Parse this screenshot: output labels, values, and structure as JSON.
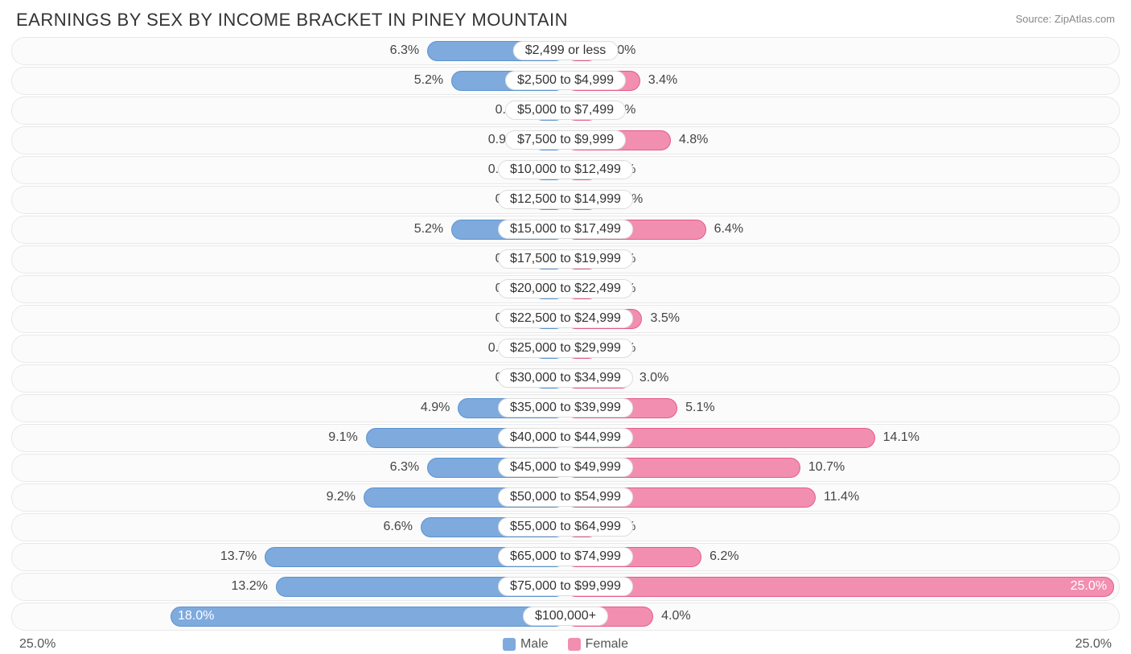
{
  "title": "EARNINGS BY SEX BY INCOME BRACKET IN PINEY MOUNTAIN",
  "source": "Source: ZipAtlas.com",
  "chart": {
    "type": "diverging-bar",
    "axis_max": 25.0,
    "axis_left_label": "25.0%",
    "axis_right_label": "25.0%",
    "min_bar_pct": 1.5,
    "row_bg": "#fbfbfb",
    "row_border": "#e8e8e8",
    "male_color": "#7eaade",
    "male_border": "#5a93d0",
    "female_color": "#f28fb1",
    "female_border": "#e55a8a",
    "label_fontsize": 16,
    "title_fontsize": 22,
    "legend": [
      {
        "label": "Male",
        "color": "#7eaade"
      },
      {
        "label": "Female",
        "color": "#f28fb1"
      }
    ],
    "rows": [
      {
        "bracket": "$2,499 or less",
        "male": 6.3,
        "male_label": "6.3%",
        "female": 0.0,
        "female_label": "0.0%"
      },
      {
        "bracket": "$2,500 to $4,999",
        "male": 5.2,
        "male_label": "5.2%",
        "female": 3.4,
        "female_label": "3.4%"
      },
      {
        "bracket": "$5,000 to $7,499",
        "male": 0.0,
        "male_label": "0.0%",
        "female": 0.0,
        "female_label": "0.0%"
      },
      {
        "bracket": "$7,500 to $9,999",
        "male": 0.92,
        "male_label": "0.92%",
        "female": 4.8,
        "female_label": "4.8%"
      },
      {
        "bracket": "$10,000 to $12,499",
        "male": 0.46,
        "male_label": "0.46%",
        "female": 1.4,
        "female_label": "1.4%"
      },
      {
        "bracket": "$12,500 to $14,999",
        "male": 0.0,
        "male_label": "0.0%",
        "female": 0.96,
        "female_label": "0.96%"
      },
      {
        "bracket": "$15,000 to $17,499",
        "male": 5.2,
        "male_label": "5.2%",
        "female": 6.4,
        "female_label": "6.4%"
      },
      {
        "bracket": "$17,500 to $19,999",
        "male": 0.0,
        "male_label": "0.0%",
        "female": 0.0,
        "female_label": "0.0%"
      },
      {
        "bracket": "$20,000 to $22,499",
        "male": 0.0,
        "male_label": "0.0%",
        "female": 0.0,
        "female_label": "0.0%"
      },
      {
        "bracket": "$22,500 to $24,999",
        "male": 0.0,
        "male_label": "0.0%",
        "female": 3.5,
        "female_label": "3.5%"
      },
      {
        "bracket": "$25,000 to $29,999",
        "male": 0.77,
        "male_label": "0.77%",
        "female": 0.0,
        "female_label": "0.0%"
      },
      {
        "bracket": "$30,000 to $34,999",
        "male": 0.0,
        "male_label": "0.0%",
        "female": 3.0,
        "female_label": "3.0%"
      },
      {
        "bracket": "$35,000 to $39,999",
        "male": 4.9,
        "male_label": "4.9%",
        "female": 5.1,
        "female_label": "5.1%"
      },
      {
        "bracket": "$40,000 to $44,999",
        "male": 9.1,
        "male_label": "9.1%",
        "female": 14.1,
        "female_label": "14.1%"
      },
      {
        "bracket": "$45,000 to $49,999",
        "male": 6.3,
        "male_label": "6.3%",
        "female": 10.7,
        "female_label": "10.7%"
      },
      {
        "bracket": "$50,000 to $54,999",
        "male": 9.2,
        "male_label": "9.2%",
        "female": 11.4,
        "female_label": "11.4%"
      },
      {
        "bracket": "$55,000 to $64,999",
        "male": 6.6,
        "male_label": "6.6%",
        "female": 0.0,
        "female_label": "0.0%"
      },
      {
        "bracket": "$65,000 to $74,999",
        "male": 13.7,
        "male_label": "13.7%",
        "female": 6.2,
        "female_label": "6.2%"
      },
      {
        "bracket": "$75,000 to $99,999",
        "male": 13.2,
        "male_label": "13.2%",
        "female": 25.0,
        "female_label": "25.0%"
      },
      {
        "bracket": "$100,000+",
        "male": 18.0,
        "male_label": "18.0%",
        "female": 4.0,
        "female_label": "4.0%"
      }
    ]
  }
}
